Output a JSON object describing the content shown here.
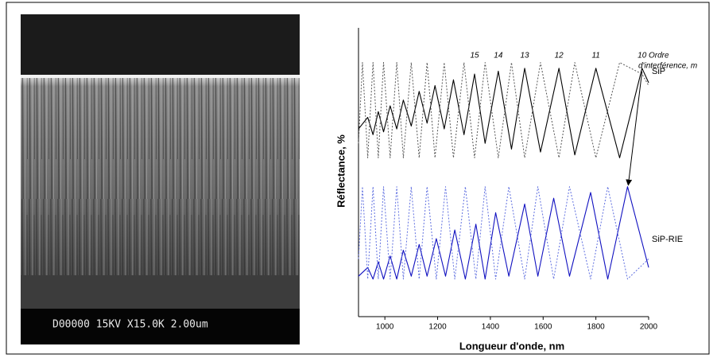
{
  "image_caption": "D00000 15KV X15.0K 2.00um",
  "chart_data": {
    "type": "line",
    "xlabel": "Longueur d'onde, nm",
    "ylabel": "Réflectance, %",
    "xlim": [
      900,
      2000
    ],
    "ylim": [
      0,
      100
    ],
    "xticks": [
      1000,
      1200,
      1400,
      1600,
      1800,
      2000
    ],
    "order_caption": [
      "Ordre",
      "d'interférence, m"
    ],
    "orders": [
      {
        "label": "15",
        "x": 1340
      },
      {
        "label": "14",
        "x": 1430
      },
      {
        "label": "13",
        "x": 1530
      },
      {
        "label": "12",
        "x": 1660
      },
      {
        "label": "11",
        "x": 1800
      },
      {
        "label": "10",
        "x": 1975
      }
    ],
    "series": [
      {
        "name": "SiP",
        "color": "#000000",
        "dash": false,
        "x": [
          900,
          935,
          955,
          975,
          995,
          1020,
          1045,
          1070,
          1100,
          1130,
          1160,
          1190,
          1225,
          1260,
          1300,
          1340,
          1380,
          1430,
          1480,
          1530,
          1590,
          1660,
          1720,
          1800,
          1890,
          1975,
          2000
        ],
        "values": [
          65,
          69,
          63,
          71,
          64,
          73,
          65,
          75,
          66,
          78,
          67,
          80,
          65,
          82,
          63,
          84,
          60,
          85,
          58,
          86,
          57,
          86,
          56,
          86,
          55,
          86,
          81
        ]
      },
      {
        "color": "#555555",
        "dash": true,
        "x": [
          900,
          915,
          935,
          955,
          975,
          995,
          1020,
          1045,
          1070,
          1100,
          1130,
          1160,
          1190,
          1225,
          1260,
          1300,
          1340,
          1380,
          1430,
          1480,
          1530,
          1590,
          1660,
          1720,
          1800,
          1890,
          1975,
          2000
        ],
        "values": [
          60,
          88,
          55,
          88,
          55,
          88,
          55,
          88,
          55,
          88,
          55,
          88,
          55,
          88,
          55,
          88,
          55,
          88,
          55,
          88,
          55,
          88,
          55,
          88,
          55,
          88,
          84,
          80
        ]
      },
      {
        "name": "SiP-RIE",
        "color": "#1010c0",
        "dash": false,
        "x": [
          900,
          935,
          955,
          975,
          995,
          1020,
          1045,
          1070,
          1100,
          1130,
          1160,
          1195,
          1230,
          1265,
          1305,
          1345,
          1380,
          1420,
          1470,
          1530,
          1580,
          1640,
          1700,
          1780,
          1845,
          1920,
          2000
        ],
        "values": [
          14,
          17,
          13,
          19,
          13,
          21,
          13,
          23,
          14,
          25,
          14,
          27,
          14,
          30,
          13,
          32,
          13,
          36,
          14,
          39,
          14,
          41,
          14,
          43,
          13,
          45,
          17
        ]
      },
      {
        "color": "#6070e0",
        "dash": true,
        "x": [
          900,
          915,
          935,
          955,
          975,
          995,
          1020,
          1045,
          1070,
          1100,
          1130,
          1160,
          1195,
          1230,
          1265,
          1305,
          1345,
          1380,
          1420,
          1470,
          1530,
          1580,
          1640,
          1700,
          1780,
          1845,
          1920,
          2000
        ],
        "values": [
          20,
          45,
          13,
          45,
          13,
          45,
          13,
          45,
          13,
          45,
          13,
          45,
          13,
          45,
          13,
          45,
          13,
          45,
          13,
          45,
          13,
          45,
          13,
          45,
          13,
          45,
          13,
          20
        ]
      }
    ]
  }
}
